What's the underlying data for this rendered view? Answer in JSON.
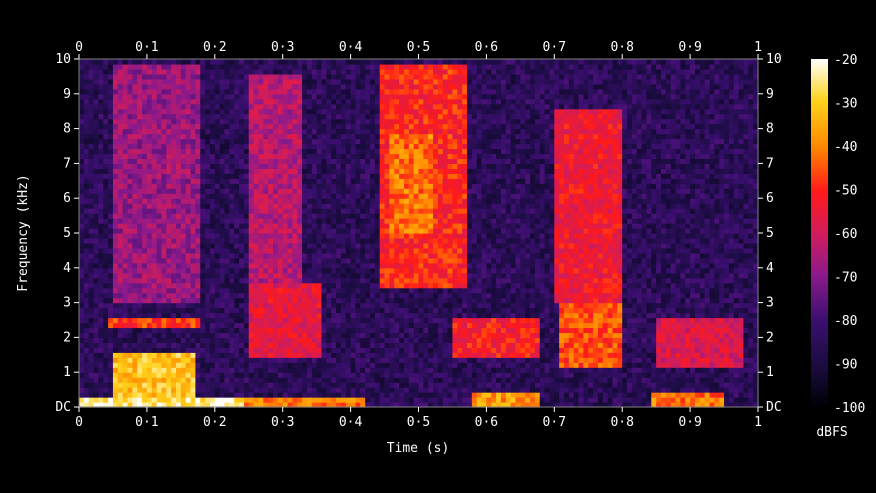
{
  "chart_data": {
    "type": "heatmap",
    "title": "",
    "xlabel": "Time (s)",
    "ylabel": "Frequency (kHz)",
    "xlim": [
      0,
      1
    ],
    "ylim": [
      0,
      10
    ],
    "x_ticks": [
      "0",
      "0·1",
      "0·2",
      "0·3",
      "0·4",
      "0·5",
      "0·6",
      "0·7",
      "0·8",
      "0·9",
      "1"
    ],
    "y_ticks": [
      "DC",
      "1",
      "2",
      "3",
      "4",
      "5",
      "6",
      "7",
      "8",
      "9",
      "10"
    ],
    "colorbar": {
      "label": "dBFS",
      "range": [
        -100,
        -20
      ],
      "ticks": [
        "-20",
        "-30",
        "-40",
        "-50",
        "-60",
        "-70",
        "-80",
        "-90",
        "-100"
      ],
      "colormap": [
        "#000004",
        "#1b0c41",
        "#4a0c6b",
        "#781c6d",
        "#a52c60",
        "#cf4446",
        "#ed6925",
        "#fb9b06",
        "#f7d13d",
        "#fcffa4"
      ]
    },
    "colormap_stops": [
      {
        "db": -100,
        "color": "#000004"
      },
      {
        "db": -90,
        "color": "#1b0c41"
      },
      {
        "db": -80,
        "color": "#3b0f70"
      },
      {
        "db": -70,
        "color": "#8c1a8c"
      },
      {
        "db": -60,
        "color": "#d21c5a"
      },
      {
        "db": -50,
        "color": "#ff1a1a"
      },
      {
        "db": -40,
        "color": "#ff8a00"
      },
      {
        "db": -30,
        "color": "#ffd21a"
      },
      {
        "db": -20,
        "color": "#ffffff"
      }
    ],
    "energy_regions_db": [
      {
        "t": [
          0.0,
          0.24
        ],
        "f": [
          0.0,
          0.35
        ],
        "db": -25
      },
      {
        "t": [
          0.05,
          0.17
        ],
        "f": [
          0.35,
          1.6
        ],
        "db": -32
      },
      {
        "t": [
          0.04,
          0.18
        ],
        "f": [
          2.3,
          2.6
        ],
        "db": -48
      },
      {
        "t": [
          0.05,
          0.18
        ],
        "f": [
          3.0,
          9.8
        ],
        "db": -68
      },
      {
        "t": [
          0.24,
          0.42
        ],
        "f": [
          0.05,
          0.35
        ],
        "db": -42
      },
      {
        "t": [
          0.25,
          0.36
        ],
        "f": [
          1.5,
          3.6
        ],
        "db": -56
      },
      {
        "t": [
          0.25,
          0.33
        ],
        "f": [
          3.6,
          9.5
        ],
        "db": -64
      },
      {
        "t": [
          0.44,
          0.57
        ],
        "f": [
          3.5,
          9.8
        ],
        "db": -50
      },
      {
        "t": [
          0.46,
          0.52
        ],
        "f": [
          5.0,
          7.8
        ],
        "db": -42
      },
      {
        "t": [
          0.58,
          0.68
        ],
        "f": [
          0.05,
          0.45
        ],
        "db": -38
      },
      {
        "t": [
          0.55,
          0.68
        ],
        "f": [
          1.5,
          2.6
        ],
        "db": -52
      },
      {
        "t": [
          0.7,
          0.8
        ],
        "f": [
          3.0,
          8.5
        ],
        "db": -54
      },
      {
        "t": [
          0.71,
          0.8
        ],
        "f": [
          1.2,
          3.0
        ],
        "db": -46
      },
      {
        "t": [
          0.84,
          0.95
        ],
        "f": [
          0.05,
          0.45
        ],
        "db": -42
      },
      {
        "t": [
          0.85,
          0.98
        ],
        "f": [
          1.2,
          2.6
        ],
        "db": -58
      },
      {
        "t": [
          0.0,
          1.0
        ],
        "f": [
          0.0,
          10.0
        ],
        "db": -85
      }
    ]
  }
}
